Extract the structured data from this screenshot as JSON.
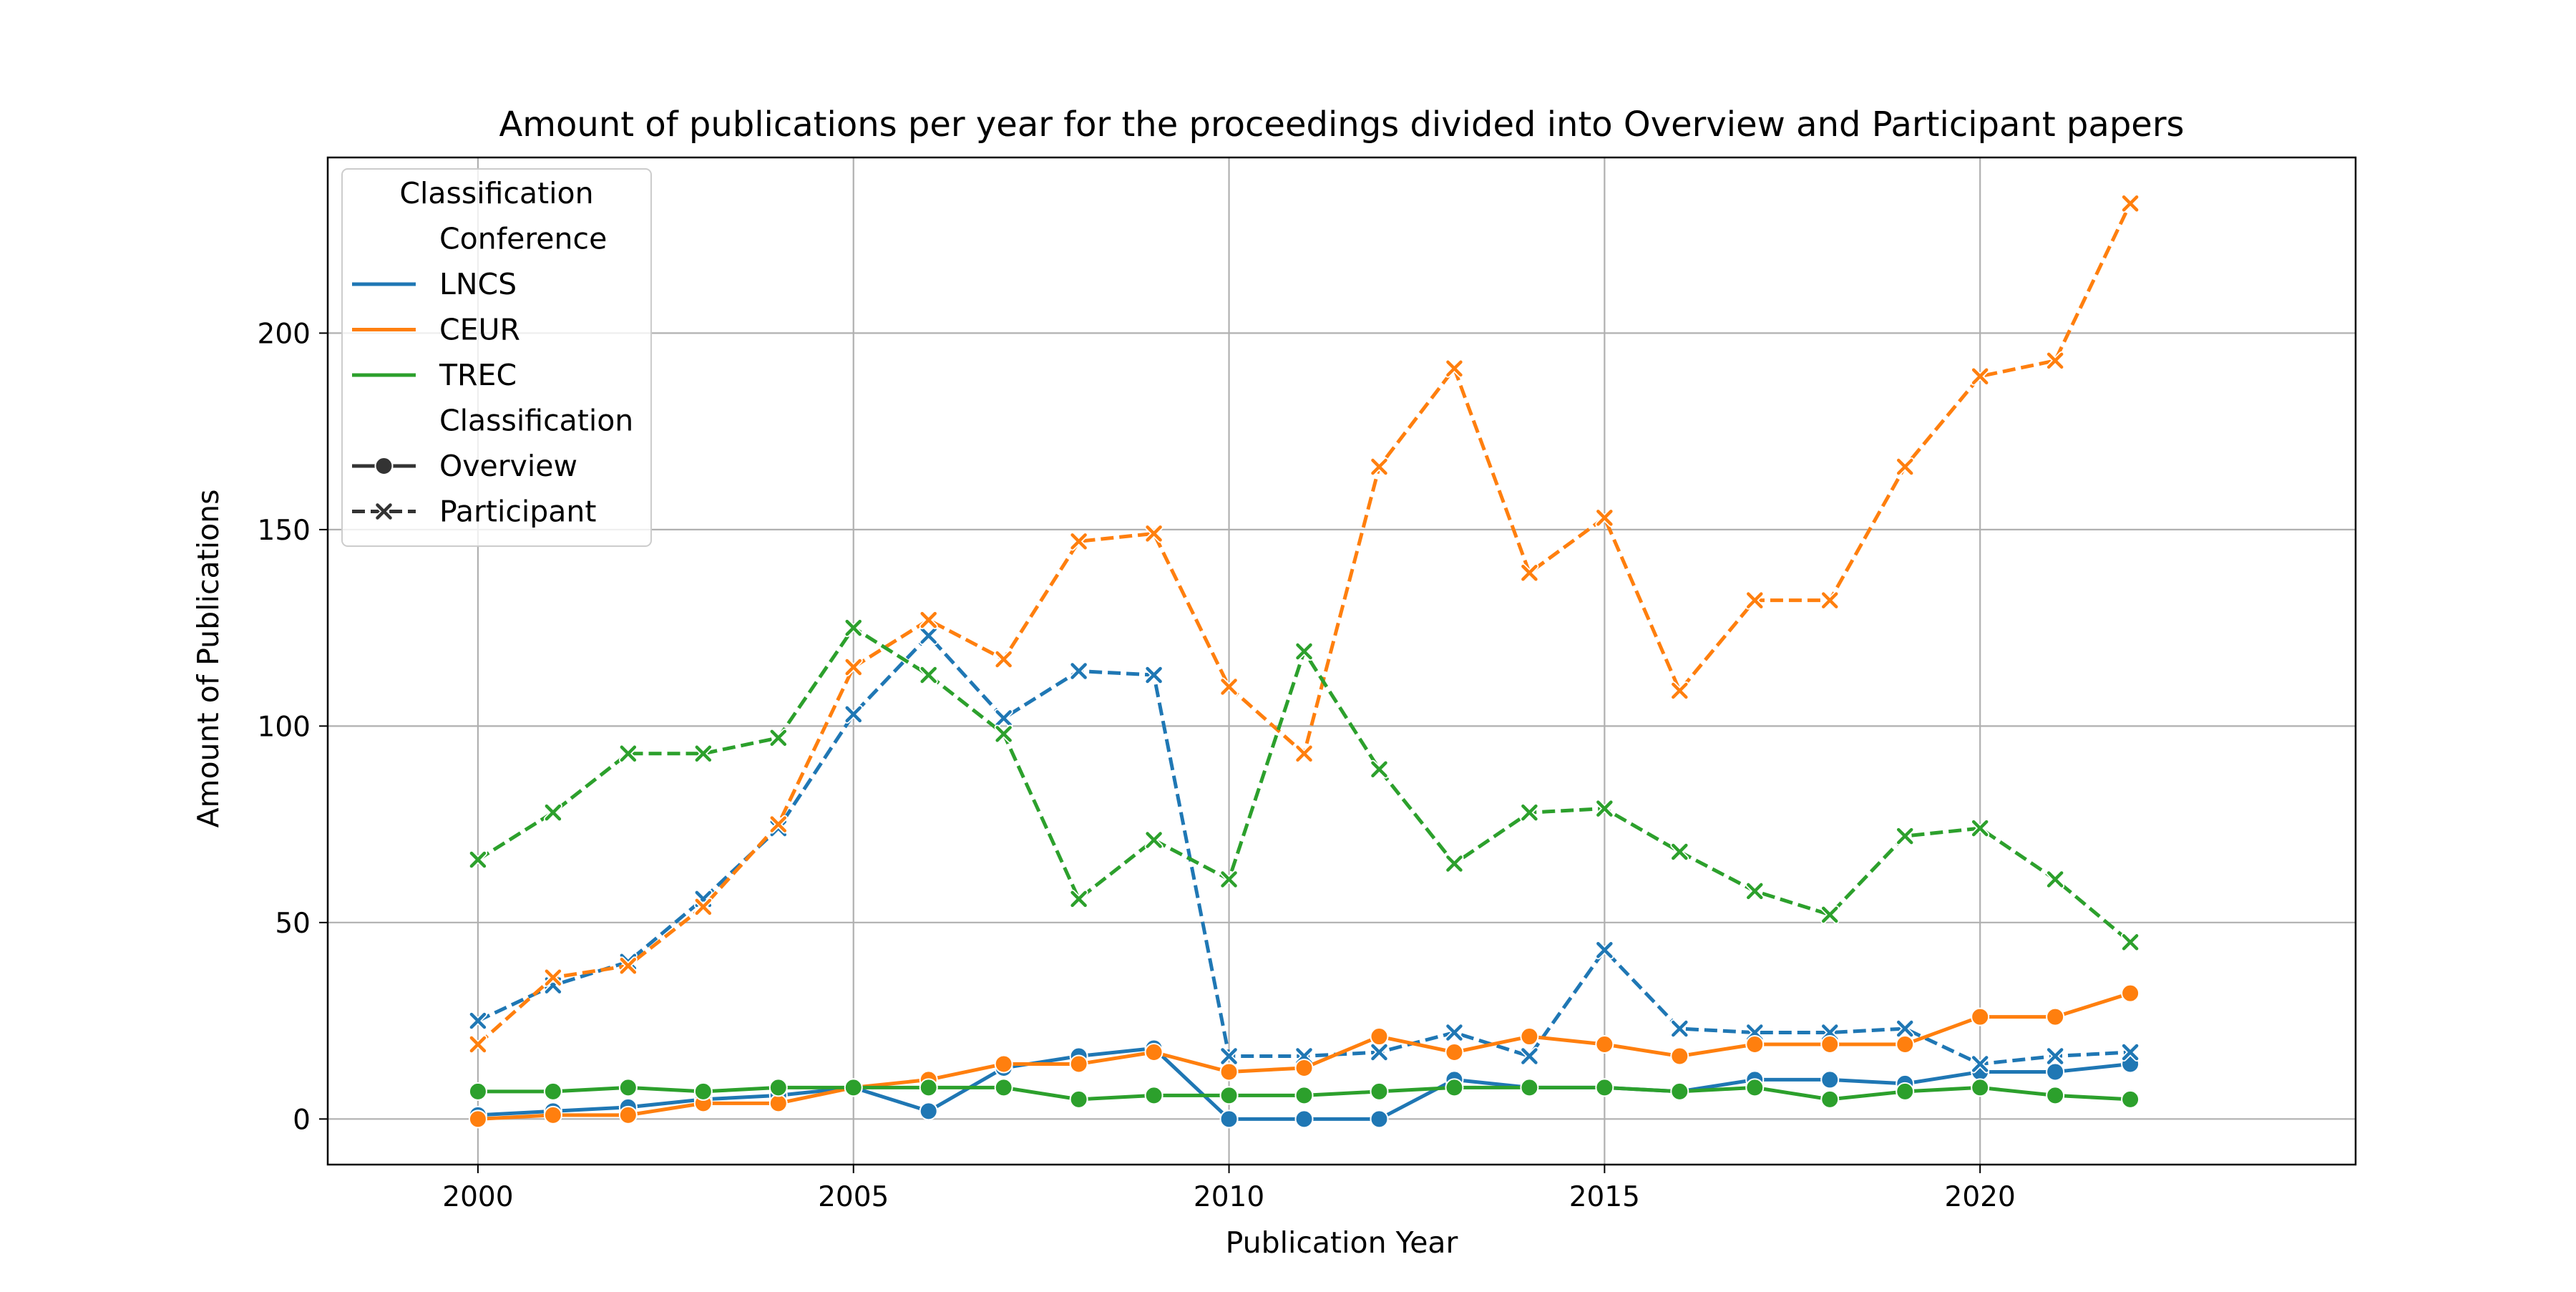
{
  "chart_data": {
    "type": "line",
    "title": "Amount of publications per year for the proceedings divided into Overview and Participant papers",
    "xlabel": "Publication Year",
    "ylabel": "Amount of Publications",
    "xlim": [
      1998,
      2025
    ],
    "ylim": [
      -11.6,
      244.7
    ],
    "xticks": [
      2000,
      2005,
      2010,
      2015,
      2020
    ],
    "yticks": [
      0,
      50,
      100,
      150,
      200
    ],
    "grid": true,
    "legend": {
      "placement": "top-left",
      "title": "Classification",
      "groups": [
        {
          "heading": "Conference",
          "entries": [
            "LNCS",
            "CEUR",
            "TREC"
          ]
        },
        {
          "heading": "Classification",
          "entries": [
            "Overview",
            "Participant"
          ]
        }
      ]
    },
    "colors": {
      "LNCS": "#1f77b4",
      "CEUR": "#ff7f0e",
      "TREC": "#2ca02c",
      "legend_style": "#333333"
    },
    "x": [
      2000,
      2001,
      2002,
      2003,
      2004,
      2005,
      2006,
      2007,
      2008,
      2009,
      2010,
      2011,
      2012,
      2013,
      2014,
      2015,
      2016,
      2017,
      2018,
      2019,
      2020,
      2021,
      2022
    ],
    "series": [
      {
        "name": "LNCS",
        "classification": "Overview",
        "style": "solid",
        "marker": "circle",
        "values": [
          1,
          2,
          3,
          5,
          6,
          8,
          2,
          13,
          16,
          18,
          0,
          0,
          0,
          10,
          8,
          8,
          7,
          10,
          10,
          9,
          12,
          12,
          14
        ]
      },
      {
        "name": "LNCS",
        "classification": "Participant",
        "style": "dashed",
        "marker": "x",
        "values": [
          25,
          34,
          40,
          56,
          74,
          103,
          123,
          102,
          114,
          113,
          16,
          16,
          17,
          22,
          16,
          43,
          23,
          22,
          22,
          23,
          14,
          16,
          17
        ]
      },
      {
        "name": "CEUR",
        "classification": "Overview",
        "style": "solid",
        "marker": "circle",
        "values": [
          0,
          1,
          1,
          4,
          4,
          8,
          10,
          14,
          14,
          17,
          12,
          13,
          21,
          17,
          21,
          19,
          16,
          19,
          19,
          19,
          26,
          26,
          32
        ]
      },
      {
        "name": "CEUR",
        "classification": "Participant",
        "style": "dashed",
        "marker": "x",
        "values": [
          19,
          36,
          39,
          54,
          75,
          115,
          127,
          117,
          147,
          149,
          110,
          93,
          166,
          191,
          139,
          153,
          109,
          132,
          132,
          166,
          189,
          193,
          233
        ]
      },
      {
        "name": "TREC",
        "classification": "Overview",
        "style": "solid",
        "marker": "circle",
        "values": [
          7,
          7,
          8,
          7,
          8,
          8,
          8,
          8,
          5,
          6,
          6,
          6,
          7,
          8,
          8,
          8,
          7,
          8,
          5,
          7,
          8,
          6,
          5
        ]
      },
      {
        "name": "TREC",
        "classification": "Participant",
        "style": "dashed",
        "marker": "x",
        "values": [
          66,
          78,
          93,
          93,
          97,
          125,
          113,
          98,
          56,
          71,
          61,
          119,
          89,
          65,
          78,
          79,
          68,
          58,
          52,
          72,
          74,
          61,
          45
        ]
      }
    ]
  }
}
